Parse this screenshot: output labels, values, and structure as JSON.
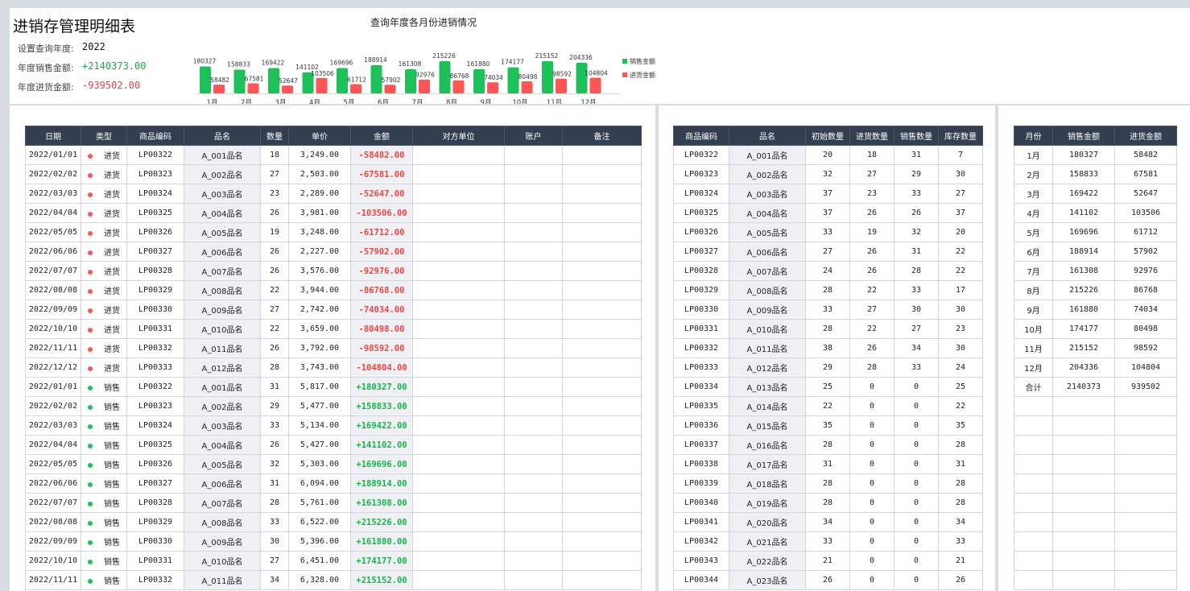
{
  "header": {
    "title": "进销存管理明细表",
    "year_label": "设置查询年度:",
    "year_value": "2022",
    "sales_label": "年度销售金额:",
    "sales_value": "+2140373.00",
    "purchase_label": "年度进货金额:",
    "purchase_value": "-939502.00",
    "chart_title": "查询年度各月份进销情况"
  },
  "colors": {
    "sales": "#1ec05a",
    "purchase": "#ff5555",
    "header_bg": "#333e4f"
  },
  "chart_data": {
    "type": "bar",
    "categories": [
      "1月",
      "2月",
      "3月",
      "4月",
      "5月",
      "6月",
      "7月",
      "8月",
      "9月",
      "10月",
      "11月",
      "12月"
    ],
    "series": [
      {
        "name": "销售金额",
        "values": [
          180327,
          158833,
          169422,
          141102,
          169696,
          188914,
          161308,
          215226,
          161880,
          174177,
          215152,
          204336
        ]
      },
      {
        "name": "进货金额",
        "values": [
          58482,
          67581,
          52647,
          103506,
          61712,
          57902,
          92976,
          86768,
          74034,
          80498,
          98592,
          104804
        ]
      }
    ],
    "legend": "right"
  },
  "detail": {
    "headers": [
      "日期",
      "类型",
      "商品编码",
      "品名",
      "数量",
      "单价",
      "金额",
      "对方单位",
      "账户",
      "备注"
    ],
    "rows": [
      {
        "date": "2022/01/01",
        "type": "进货",
        "code": "LP00322",
        "name": "A_001品名",
        "qty": "18",
        "price": "3,249.00",
        "amount": "-58482.00"
      },
      {
        "date": "2022/02/02",
        "type": "进货",
        "code": "LP00323",
        "name": "A_002品名",
        "qty": "27",
        "price": "2,503.00",
        "amount": "-67581.00"
      },
      {
        "date": "2022/03/03",
        "type": "进货",
        "code": "LP00324",
        "name": "A_003品名",
        "qty": "23",
        "price": "2,289.00",
        "amount": "-52647.00"
      },
      {
        "date": "2022/04/04",
        "type": "进货",
        "code": "LP00325",
        "name": "A_004品名",
        "qty": "26",
        "price": "3,981.00",
        "amount": "-103506.00"
      },
      {
        "date": "2022/05/05",
        "type": "进货",
        "code": "LP00326",
        "name": "A_005品名",
        "qty": "19",
        "price": "3,248.00",
        "amount": "-61712.00"
      },
      {
        "date": "2022/06/06",
        "type": "进货",
        "code": "LP00327",
        "name": "A_006品名",
        "qty": "26",
        "price": "2,227.00",
        "amount": "-57902.00"
      },
      {
        "date": "2022/07/07",
        "type": "进货",
        "code": "LP00328",
        "name": "A_007品名",
        "qty": "26",
        "price": "3,576.00",
        "amount": "-92976.00"
      },
      {
        "date": "2022/08/08",
        "type": "进货",
        "code": "LP00329",
        "name": "A_008品名",
        "qty": "22",
        "price": "3,944.00",
        "amount": "-86768.00"
      },
      {
        "date": "2022/09/09",
        "type": "进货",
        "code": "LP00330",
        "name": "A_009品名",
        "qty": "27",
        "price": "2,742.00",
        "amount": "-74034.00"
      },
      {
        "date": "2022/10/10",
        "type": "进货",
        "code": "LP00331",
        "name": "A_010品名",
        "qty": "22",
        "price": "3,659.00",
        "amount": "-80498.00"
      },
      {
        "date": "2022/11/11",
        "type": "进货",
        "code": "LP00332",
        "name": "A_011品名",
        "qty": "26",
        "price": "3,792.00",
        "amount": "-98592.00"
      },
      {
        "date": "2022/12/12",
        "type": "进货",
        "code": "LP00333",
        "name": "A_012品名",
        "qty": "28",
        "price": "3,743.00",
        "amount": "-104804.00"
      },
      {
        "date": "2022/01/01",
        "type": "销售",
        "code": "LP00322",
        "name": "A_001品名",
        "qty": "31",
        "price": "5,817.00",
        "amount": "+180327.00"
      },
      {
        "date": "2022/02/02",
        "type": "销售",
        "code": "LP00323",
        "name": "A_002品名",
        "qty": "29",
        "price": "5,477.00",
        "amount": "+158833.00"
      },
      {
        "date": "2022/03/03",
        "type": "销售",
        "code": "LP00324",
        "name": "A_003品名",
        "qty": "33",
        "price": "5,134.00",
        "amount": "+169422.00"
      },
      {
        "date": "2022/04/04",
        "type": "销售",
        "code": "LP00325",
        "name": "A_004品名",
        "qty": "26",
        "price": "5,427.00",
        "amount": "+141102.00"
      },
      {
        "date": "2022/05/05",
        "type": "销售",
        "code": "LP00326",
        "name": "A_005品名",
        "qty": "32",
        "price": "5,303.00",
        "amount": "+169696.00"
      },
      {
        "date": "2022/06/06",
        "type": "销售",
        "code": "LP00327",
        "name": "A_006品名",
        "qty": "31",
        "price": "6,094.00",
        "amount": "+188914.00"
      },
      {
        "date": "2022/07/07",
        "type": "销售",
        "code": "LP00328",
        "name": "A_007品名",
        "qty": "28",
        "price": "5,761.00",
        "amount": "+161308.00"
      },
      {
        "date": "2022/08/08",
        "type": "销售",
        "code": "LP00329",
        "name": "A_008品名",
        "qty": "33",
        "price": "6,522.00",
        "amount": "+215226.00"
      },
      {
        "date": "2022/09/09",
        "type": "销售",
        "code": "LP00330",
        "name": "A_009品名",
        "qty": "30",
        "price": "5,396.00",
        "amount": "+161880.00"
      },
      {
        "date": "2022/10/10",
        "type": "销售",
        "code": "LP00331",
        "name": "A_010品名",
        "qty": "27",
        "price": "6,451.00",
        "amount": "+174177.00"
      },
      {
        "date": "2022/11/11",
        "type": "销售",
        "code": "LP00332",
        "name": "A_011品名",
        "qty": "34",
        "price": "6,328.00",
        "amount": "+215152.00"
      }
    ]
  },
  "inventory": {
    "headers": [
      "商品编码",
      "品名",
      "初始数量",
      "进货数量",
      "销售数量",
      "库存数量"
    ],
    "rows": [
      [
        "LP00322",
        "A_001品名",
        "20",
        "18",
        "31",
        "7"
      ],
      [
        "LP00323",
        "A_002品名",
        "32",
        "27",
        "29",
        "30"
      ],
      [
        "LP00324",
        "A_003品名",
        "37",
        "23",
        "33",
        "27"
      ],
      [
        "LP00325",
        "A_004品名",
        "37",
        "26",
        "26",
        "37"
      ],
      [
        "LP00326",
        "A_005品名",
        "33",
        "19",
        "32",
        "20"
      ],
      [
        "LP00327",
        "A_006品名",
        "27",
        "26",
        "31",
        "22"
      ],
      [
        "LP00328",
        "A_007品名",
        "24",
        "26",
        "28",
        "22"
      ],
      [
        "LP00329",
        "A_008品名",
        "28",
        "22",
        "33",
        "17"
      ],
      [
        "LP00330",
        "A_009品名",
        "33",
        "27",
        "30",
        "30"
      ],
      [
        "LP00331",
        "A_010品名",
        "28",
        "22",
        "27",
        "23"
      ],
      [
        "LP00332",
        "A_011品名",
        "38",
        "26",
        "34",
        "30"
      ],
      [
        "LP00333",
        "A_012品名",
        "29",
        "28",
        "33",
        "24"
      ],
      [
        "LP00334",
        "A_013品名",
        "25",
        "0",
        "0",
        "25"
      ],
      [
        "LP00335",
        "A_014品名",
        "22",
        "0",
        "0",
        "22"
      ],
      [
        "LP00336",
        "A_015品名",
        "35",
        "0",
        "0",
        "35"
      ],
      [
        "LP00337",
        "A_016品名",
        "28",
        "0",
        "0",
        "28"
      ],
      [
        "LP00338",
        "A_017品名",
        "31",
        "0",
        "0",
        "31"
      ],
      [
        "LP00339",
        "A_018品名",
        "28",
        "0",
        "0",
        "28"
      ],
      [
        "LP00340",
        "A_019品名",
        "28",
        "0",
        "0",
        "28"
      ],
      [
        "LP00341",
        "A_020品名",
        "34",
        "0",
        "0",
        "34"
      ],
      [
        "LP00342",
        "A_021品名",
        "33",
        "0",
        "0",
        "33"
      ],
      [
        "LP00343",
        "A_022品名",
        "21",
        "0",
        "0",
        "21"
      ],
      [
        "LP00344",
        "A_023品名",
        "26",
        "0",
        "0",
        "26"
      ]
    ]
  },
  "monthly": {
    "headers": [
      "月份",
      "销售金额",
      "进货金额"
    ],
    "rows": [
      [
        "1月",
        "180327",
        "58482"
      ],
      [
        "2月",
        "158833",
        "67581"
      ],
      [
        "3月",
        "169422",
        "52647"
      ],
      [
        "4月",
        "141102",
        "103506"
      ],
      [
        "5月",
        "169696",
        "61712"
      ],
      [
        "6月",
        "188914",
        "57902"
      ],
      [
        "7月",
        "161308",
        "92976"
      ],
      [
        "8月",
        "215226",
        "86768"
      ],
      [
        "9月",
        "161880",
        "74034"
      ],
      [
        "10月",
        "174177",
        "80498"
      ],
      [
        "11月",
        "215152",
        "98592"
      ],
      [
        "12月",
        "204336",
        "104804"
      ],
      [
        "合计",
        "2140373",
        "939502"
      ]
    ],
    "blank_rows": 10
  }
}
